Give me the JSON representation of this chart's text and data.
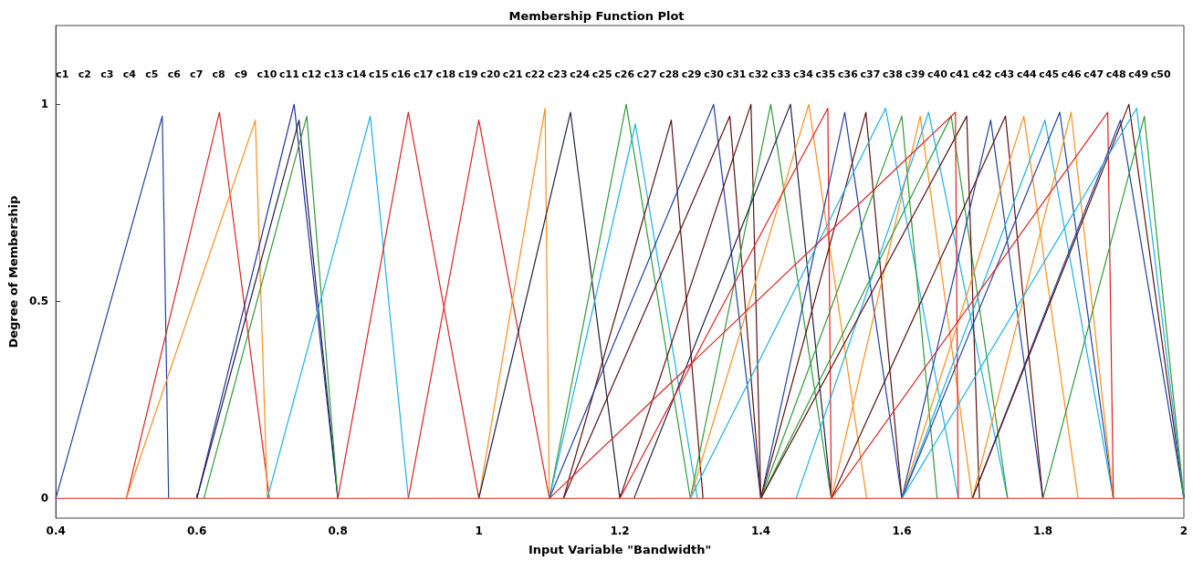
{
  "chart_data": {
    "type": "line",
    "title": "Membership Function Plot",
    "xlabel": "Input Variable \"Bandwidth\"",
    "ylabel": "Degree of Membership",
    "xlim": [
      0.4,
      2
    ],
    "xticks": [
      0.4,
      0.6,
      0.8,
      1,
      1.2,
      1.4,
      1.6,
      1.8,
      2
    ],
    "ylim": [
      -0.05,
      1.2
    ],
    "yticks": [
      0,
      0.5,
      1
    ],
    "marker": "none",
    "line_style": "solid",
    "annotations": [
      "c1",
      "c2",
      "c3",
      "c4",
      "c5",
      "c6",
      "c7",
      "c8",
      "c9",
      "c10",
      "c11",
      "c12",
      "c13",
      "c14",
      "c15",
      "c16",
      "c17",
      "c18",
      "c19",
      "c20",
      "c21",
      "c22",
      "c23",
      "c24",
      "c25",
      "c26",
      "c27",
      "c28",
      "c29",
      "c30",
      "c31",
      "c32",
      "c33",
      "c34",
      "c35",
      "c36",
      "c37",
      "c38",
      "c39",
      "c40",
      "c41",
      "c42",
      "c43",
      "c44",
      "c45",
      "c46",
      "c47",
      "c48",
      "c49",
      "c50"
    ],
    "series": [
      {
        "color": "#2040a0",
        "x": [
          0.4,
          0.551,
          0.56
        ],
        "values": [
          0,
          0.97,
          0
        ]
      },
      {
        "color": "#e02020",
        "x": [
          0.5,
          0.632,
          0.703
        ],
        "values": [
          0,
          0.98,
          0
        ]
      },
      {
        "color": "#ff8c1a",
        "x": [
          0.5,
          0.683,
          0.7
        ],
        "values": [
          0,
          0.96,
          0
        ]
      },
      {
        "color": "#2030a0",
        "x": [
          0.6,
          0.738,
          0.8
        ],
        "values": [
          0,
          1,
          0
        ]
      },
      {
        "color": "#202040",
        "x": [
          0.6,
          0.745,
          0.8
        ],
        "values": [
          0,
          0.96,
          0
        ]
      },
      {
        "color": "#2e9a3a",
        "x": [
          0.61,
          0.756,
          0.8
        ],
        "values": [
          0,
          0.97,
          0
        ]
      },
      {
        "color": "#1ab0e8",
        "x": [
          0.7,
          0.846,
          0.9
        ],
        "values": [
          0,
          0.97,
          0
        ]
      },
      {
        "color": "#e02020",
        "x": [
          0.8,
          0.9,
          1.0
        ],
        "values": [
          0,
          0.98,
          0
        ]
      },
      {
        "color": "#e02020",
        "x": [
          0.9,
          1.0,
          1.1
        ],
        "values": [
          0,
          0.96,
          0
        ]
      },
      {
        "color": "#ff8c1a",
        "x": [
          1.0,
          1.094,
          1.1
        ],
        "values": [
          0,
          0.99,
          0
        ]
      },
      {
        "color": "#202040",
        "x": [
          1.0,
          1.13,
          1.2
        ],
        "values": [
          0,
          0.98,
          0
        ]
      },
      {
        "color": "#2e9a3a",
        "x": [
          1.1,
          1.209,
          1.3
        ],
        "values": [
          0,
          1,
          0
        ]
      },
      {
        "color": "#1ab0e8",
        "x": [
          1.1,
          1.222,
          1.31
        ],
        "values": [
          0,
          0.95,
          0
        ]
      },
      {
        "color": "#5a1010",
        "x": [
          1.12,
          1.273,
          1.318
        ],
        "values": [
          0,
          0.96,
          0
        ]
      },
      {
        "color": "#2040a0",
        "x": [
          1.1,
          1.333,
          1.4
        ],
        "values": [
          0,
          1,
          0
        ]
      },
      {
        "color": "#5a1010",
        "x": [
          1.12,
          1.356,
          1.4
        ],
        "values": [
          0,
          0.97,
          0
        ]
      },
      {
        "color": "#5a1010",
        "x": [
          1.2,
          1.386,
          1.4
        ],
        "values": [
          0,
          1,
          0
        ]
      },
      {
        "color": "#2e9a3a",
        "x": [
          1.3,
          1.414,
          1.5
        ],
        "values": [
          0,
          1,
          0
        ]
      },
      {
        "color": "#202040",
        "x": [
          1.22,
          1.442,
          1.5
        ],
        "values": [
          0,
          1,
          0
        ]
      },
      {
        "color": "#ff8c1a",
        "x": [
          1.3,
          1.468,
          1.55
        ],
        "values": [
          0,
          1,
          0
        ]
      },
      {
        "color": "#e02020",
        "x": [
          1.2,
          1.495,
          1.5
        ],
        "values": [
          0,
          0.99,
          0
        ]
      },
      {
        "color": "#2040a0",
        "x": [
          1.4,
          1.519,
          1.6
        ],
        "values": [
          0,
          0.98,
          0
        ]
      },
      {
        "color": "#5a1010",
        "x": [
          1.4,
          1.549,
          1.6
        ],
        "values": [
          0,
          0.98,
          0
        ]
      },
      {
        "color": "#1ab0e8",
        "x": [
          1.3,
          1.577,
          1.68
        ],
        "values": [
          0,
          0.99,
          0
        ]
      },
      {
        "color": "#2e9a3a",
        "x": [
          1.4,
          1.6,
          1.65
        ],
        "values": [
          0,
          0.97,
          0
        ]
      },
      {
        "color": "#ff8c1a",
        "x": [
          1.5,
          1.626,
          1.7
        ],
        "values": [
          0,
          0.97,
          0
        ]
      },
      {
        "color": "#1ab0e8",
        "x": [
          1.45,
          1.638,
          1.75
        ],
        "values": [
          0,
          0.98,
          0
        ]
      },
      {
        "color": "#2e9a3a",
        "x": [
          1.4,
          1.67,
          1.75
        ],
        "values": [
          0,
          0.97,
          0
        ]
      },
      {
        "color": "#5a1010",
        "x": [
          1.4,
          1.692,
          1.71
        ],
        "values": [
          0,
          0.97,
          0
        ]
      },
      {
        "color": "#e02020",
        "x": [
          1.1,
          1.676,
          1.68
        ],
        "values": [
          0,
          0.98,
          0
        ]
      },
      {
        "color": "#2040a0",
        "x": [
          1.6,
          1.726,
          1.8
        ],
        "values": [
          0,
          0.96,
          0
        ]
      },
      {
        "color": "#5a1010",
        "x": [
          1.5,
          1.747,
          1.8
        ],
        "values": [
          0,
          0.97,
          0
        ]
      },
      {
        "color": "#ff8c1a",
        "x": [
          1.6,
          1.773,
          1.85
        ],
        "values": [
          0,
          0.97,
          0
        ]
      },
      {
        "color": "#1ab0e8",
        "x": [
          1.6,
          1.803,
          1.9
        ],
        "values": [
          0,
          0.96,
          0
        ]
      },
      {
        "color": "#2040a0",
        "x": [
          1.6,
          1.824,
          1.9
        ],
        "values": [
          0,
          0.98,
          0
        ]
      },
      {
        "color": "#ff8c1a",
        "x": [
          1.7,
          1.84,
          1.9
        ],
        "values": [
          0,
          0.98,
          0
        ]
      },
      {
        "color": "#e02020",
        "x": [
          1.5,
          1.892,
          1.9
        ],
        "values": [
          0,
          0.98,
          0
        ]
      },
      {
        "color": "#2040a0",
        "x": [
          1.7,
          1.91,
          2.0
        ],
        "values": [
          0,
          0.96,
          0
        ]
      },
      {
        "color": "#5a1010",
        "x": [
          1.7,
          1.922,
          2.0
        ],
        "values": [
          0,
          1,
          0
        ]
      },
      {
        "color": "#1ab0e8",
        "x": [
          1.6,
          1.933,
          2.0
        ],
        "values": [
          0,
          0.99,
          0
        ]
      },
      {
        "color": "#2e9a3a",
        "x": [
          1.8,
          1.944,
          2.0
        ],
        "values": [
          0,
          0.97,
          0
        ]
      },
      {
        "color": "#e05050",
        "x": [
          0.4,
          2.0
        ],
        "values": [
          0,
          0
        ]
      }
    ]
  }
}
